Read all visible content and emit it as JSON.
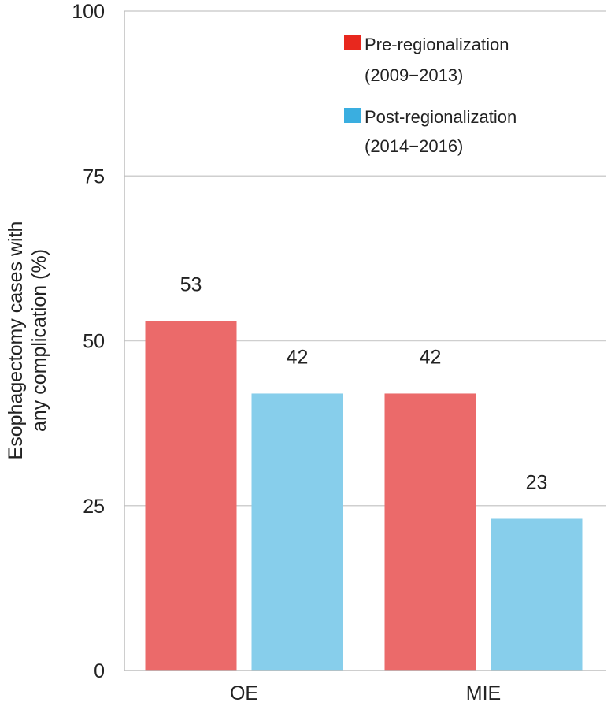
{
  "chart_data": {
    "type": "bar",
    "categories": [
      "OE",
      "MIE"
    ],
    "series": [
      {
        "name": "Pre-regionalization (2009−2013)",
        "name_lines": [
          "Pre-regionalization",
          "(2009−2013)"
        ],
        "color": "#eb6a6a",
        "legend_color": "#e8281e",
        "values": [
          53,
          42
        ]
      },
      {
        "name": "Post-regionalization (2014−2016)",
        "name_lines": [
          "Post-regionalization",
          "(2014−2016)"
        ],
        "color": "#87ceeb",
        "legend_color": "#3aaee0",
        "values": [
          42,
          23
        ]
      }
    ],
    "ylabel_lines": [
      "Esophagectomy cases with",
      "any complication (%)"
    ],
    "xlabel": "",
    "title": "",
    "ylim": [
      0,
      100
    ],
    "yticks": [
      0,
      25,
      50,
      75,
      100
    ],
    "grid": true,
    "legend_position": "top-right"
  }
}
